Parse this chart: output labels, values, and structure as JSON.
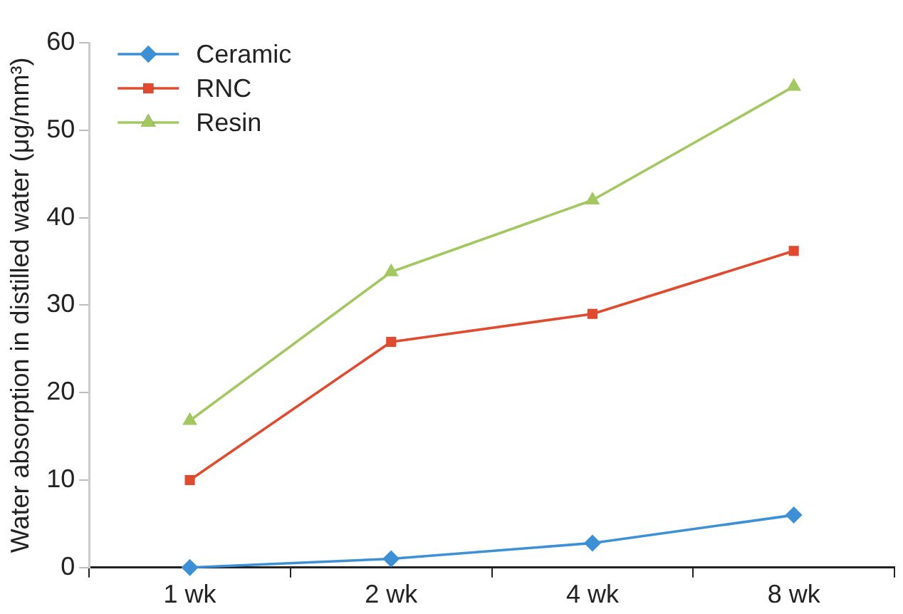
{
  "chart_data": {
    "type": "line",
    "ylabel": "Water absorption in distilled water (μg/mm³)",
    "categories": [
      "1 wk",
      "2 wk",
      "4 wk",
      "8 wk"
    ],
    "series": [
      {
        "name": "Ceramic",
        "color": "#3d8fd6",
        "marker": "diamond",
        "values": [
          0,
          1,
          2.8,
          6
        ]
      },
      {
        "name": "RNC",
        "color": "#e04a2f",
        "marker": "square",
        "values": [
          10,
          25.8,
          29,
          36.2
        ]
      },
      {
        "name": "Resin",
        "color": "#a3c862",
        "marker": "triangle",
        "values": [
          16.8,
          33.8,
          42,
          55
        ]
      }
    ],
    "ylim": [
      0,
      60
    ],
    "yticks": [
      0,
      10,
      20,
      30,
      40,
      50,
      60
    ],
    "grid": false,
    "legend": "top left"
  }
}
